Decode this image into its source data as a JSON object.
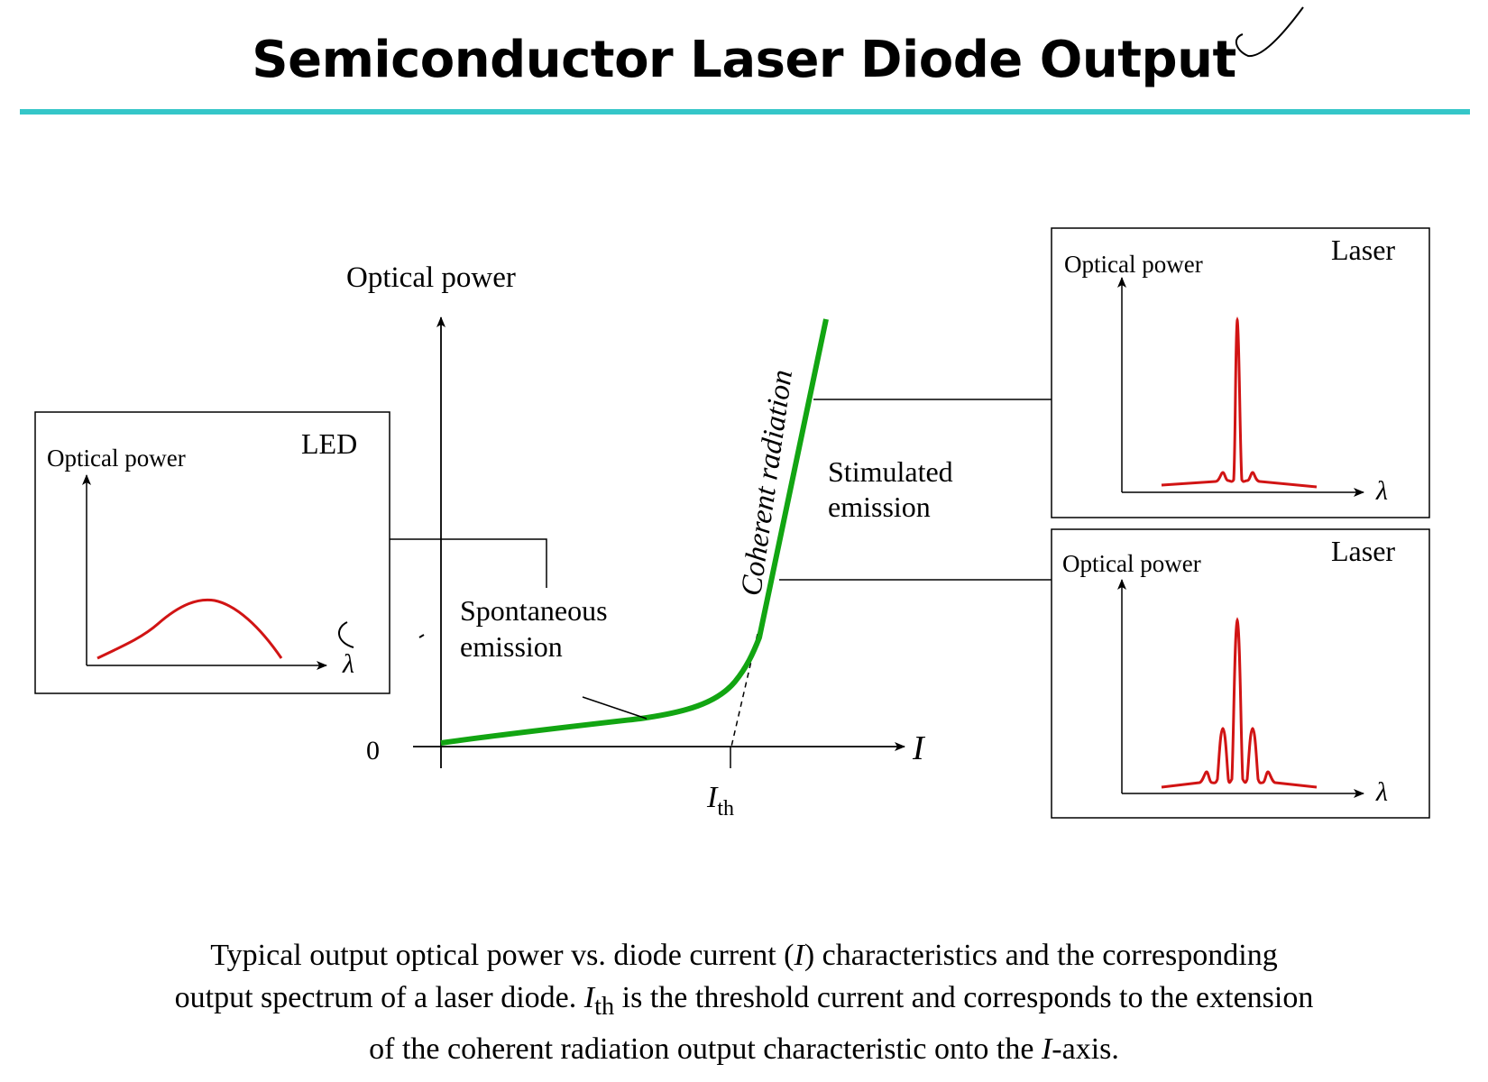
{
  "slide": {
    "title": "Semiconductor Laser Diode Output"
  },
  "main_plot": {
    "y_axis_label": "Optical power",
    "x_axis_label": "I",
    "origin_label": "0",
    "threshold_label_main": "I",
    "threshold_label_sub": "th",
    "curve_color": "#12a512",
    "region_spontaneous": [
      "Spontaneous",
      "emission"
    ],
    "region_stimulated": [
      "Stimulated",
      "emission"
    ],
    "coherent_label": "Coherent radiation"
  },
  "insets": {
    "led": {
      "tag": "LED",
      "y_label": "Optical power",
      "x_label": "λ",
      "curve_color": "#d11414"
    },
    "laser_top": {
      "tag": "Laser",
      "y_label": "Optical power",
      "x_label": "λ",
      "curve_color": "#d11414"
    },
    "laser_bottom": {
      "tag": "Laser",
      "y_label": "Optical power",
      "x_label": "λ",
      "curve_color": "#d11414"
    }
  },
  "caption": {
    "line1_a": "Typical output optical power vs. diode current (",
    "line1_i": "I",
    "line1_b": ") characteristics and the corresponding",
    "line2_a": "output spectrum of a laser diode. ",
    "line2_i": "I",
    "line2_sub": "th",
    "line2_b": " is the threshold current and corresponds to the extension",
    "line3_a": "of the coherent radiation output characteristic onto the ",
    "line3_i": "I",
    "line3_b": "-axis."
  }
}
